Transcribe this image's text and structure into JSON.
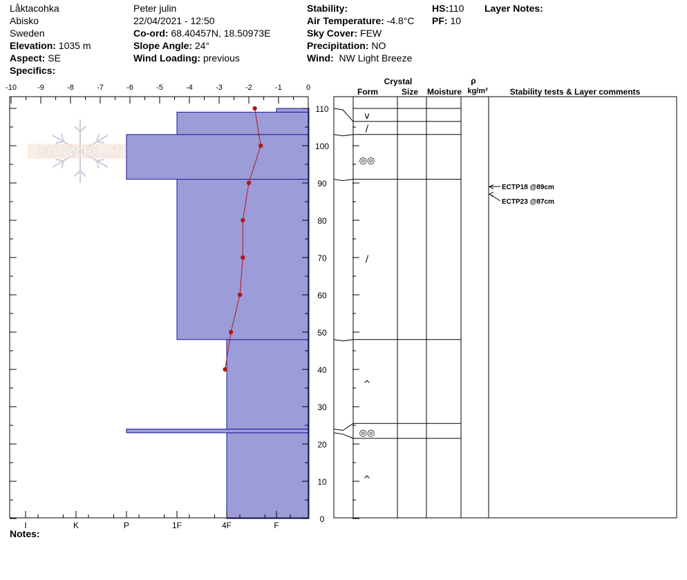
{
  "header": {
    "location": "Låktacohka",
    "region": "Abisko",
    "country": "Sweden",
    "elevation_label": "Elevation:",
    "elevation_value": "1035 m",
    "aspect_label": "Aspect:",
    "aspect_value": "SE",
    "specifics_label": "Specifics:",
    "observer": "Peter julin",
    "datetime": "22/04/2021 - 12:50",
    "coord_label": "Co-ord:",
    "coord_value": "68.40457N, 18.50973E",
    "slope_label": "Slope Angle:",
    "slope_value": "24°",
    "wind_loading_label": "Wind Loading:",
    "wind_loading_value": "previous",
    "stability_label": "Stability:",
    "air_temp_label": "Air Temperature:",
    "air_temp_value": "-4.8°C",
    "sky_label": "Sky Cover:",
    "sky_value": "FEW",
    "precip_label": "Precipitation:",
    "precip_value": "NO",
    "wind_label": "Wind:",
    "wind_value": "NW Light Breeze",
    "hs_label": "HS:",
    "hs_value": "110",
    "pf_label": "PF:",
    "pf_value": "10",
    "layer_notes_label": "Layer Notes:"
  },
  "logo_text": "SNOW PILOT",
  "notes_label": "Notes:",
  "colors": {
    "layer_fill": "#9c9cd8",
    "layer_stroke": "#1a1a9a",
    "temp": "#b01818"
  },
  "table_headers": {
    "crystal": "Crystal",
    "form": "Form",
    "size": "Size",
    "moisture": "Moisture",
    "rho": "ρ",
    "density_unit": "kg/m³",
    "stability": "Stability tests & Layer comments"
  },
  "chart_data": {
    "type": "snow-profile",
    "temp_axis": {
      "min": -10,
      "max": 0,
      "ticks": [
        "-10",
        "-9",
        "-8",
        "-7",
        "-6",
        "-5",
        "-4",
        "-3",
        "-2",
        "-1",
        "0"
      ]
    },
    "height_axis": {
      "min": 0,
      "max": 110,
      "ticks": [
        "0",
        "10",
        "20",
        "30",
        "40",
        "50",
        "60",
        "70",
        "80",
        "90",
        "100",
        "110"
      ]
    },
    "hardness_ticks": [
      "I",
      "K",
      "P",
      "1F",
      "4F",
      "F"
    ],
    "temperature_profile": [
      {
        "height": 110,
        "temp": -1.8
      },
      {
        "height": 100,
        "temp": -1.6
      },
      {
        "height": 90,
        "temp": -2.0
      },
      {
        "height": 80,
        "temp": -2.2
      },
      {
        "height": 70,
        "temp": -2.2
      },
      {
        "height": 60,
        "temp": -2.3
      },
      {
        "height": 50,
        "temp": -2.6
      },
      {
        "height": 40,
        "temp": -2.8
      }
    ],
    "layers": [
      {
        "bottom": 0,
        "top": 23,
        "hardness": "4F"
      },
      {
        "bottom": 23,
        "top": 24,
        "hardness": "P"
      },
      {
        "bottom": 24,
        "top": 48,
        "hardness": "4F"
      },
      {
        "bottom": 48,
        "top": 91,
        "hardness": "1F"
      },
      {
        "bottom": 91,
        "top": 103,
        "hardness": "P"
      },
      {
        "bottom": 103,
        "top": 109,
        "hardness": "1F"
      },
      {
        "bottom": 109,
        "top": 110,
        "hardness": "F+"
      }
    ],
    "table_boundaries": [
      110,
      106.5,
      103,
      91,
      48,
      25.5,
      21.5
    ],
    "grain_symbols": [
      {
        "height": 108,
        "symbol": "v"
      },
      {
        "height": 104.5,
        "symbol": "/"
      },
      {
        "height": 96,
        "symbol": "◎◎"
      },
      {
        "height": 69.5,
        "symbol": "/"
      },
      {
        "height": 36,
        "symbol": "^"
      },
      {
        "height": 23,
        "symbol": "◎◎"
      },
      {
        "height": 10.5,
        "symbol": "^"
      }
    ],
    "stability_tests": [
      {
        "label": "ECTP18 @89cm",
        "height": 89
      },
      {
        "label": "ECTP23 @87cm",
        "height": 87
      }
    ]
  }
}
